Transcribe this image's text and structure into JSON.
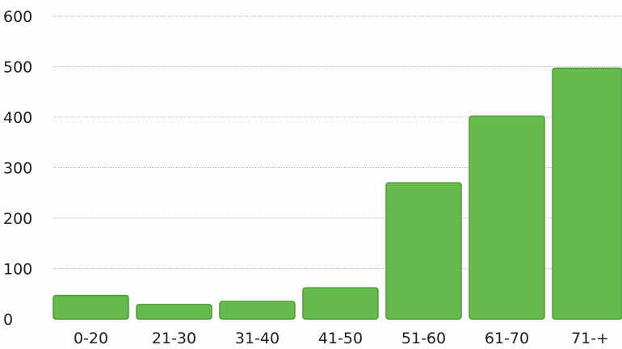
{
  "chart_data": {
    "type": "bar",
    "title": "",
    "xlabel": "",
    "ylabel": "",
    "categories": [
      "0-20",
      "21-30",
      "31-40",
      "41-50",
      "51-60",
      "61-70",
      "71-+"
    ],
    "values": [
      47,
      29,
      35,
      62,
      270,
      402,
      497
    ],
    "ylim": [
      0,
      600
    ],
    "yticks": [
      "0",
      "100",
      "200",
      "300",
      "400",
      "500",
      "600"
    ],
    "grid": true,
    "legend": "none",
    "bar_color": "#66bb4c",
    "bar_edge_color": "#4f9b3a"
  }
}
